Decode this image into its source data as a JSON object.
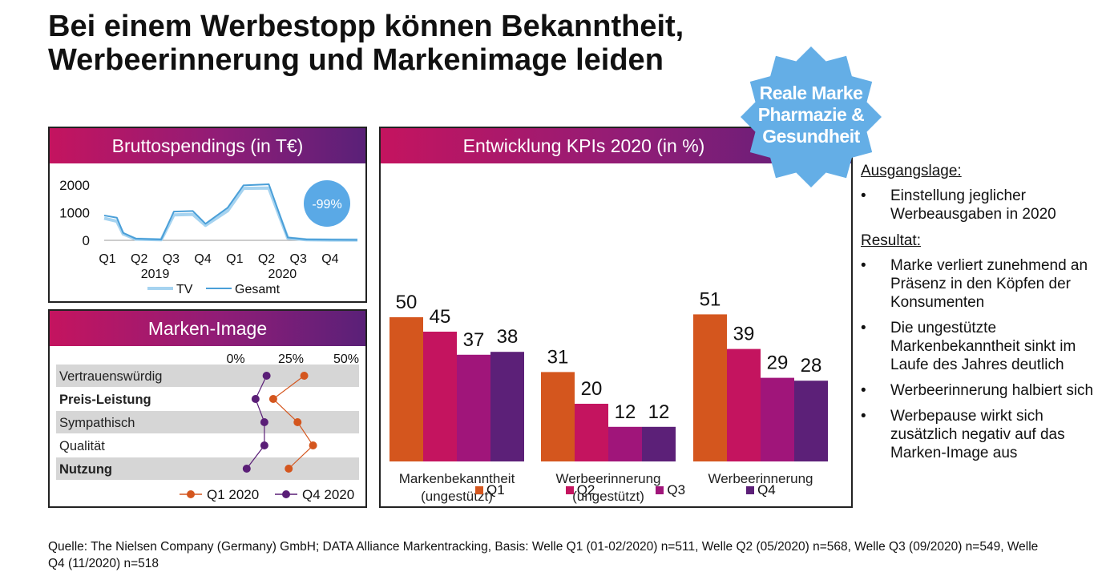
{
  "title": "Bei einem Werbestopp können Bekanntheit, Werbeerinnerung und Markenimage leiden",
  "badge": {
    "lines": [
      "Reale Marke",
      "Pharmazie &",
      "Gesundheit"
    ],
    "color": "#64aee6"
  },
  "colors": {
    "q1": "#d4561e",
    "q2": "#c4145f",
    "q3": "#a0157a",
    "q4": "#5c2078",
    "tv": "#a6d3f0",
    "gesamt": "#4a9fd8",
    "bubble": "#5aa9e6",
    "dot_q1": "#d4561e",
    "dot_q4": "#5a1e77"
  },
  "panels": {
    "spend": {
      "title": "Bruttospendings (in T€)"
    },
    "image": {
      "title": "Marken-Image"
    },
    "kpi": {
      "title": "Entwicklung KPIs 2020 (in %)"
    }
  },
  "sidebar": {
    "ausgangslage_heading": "Ausgangslage:",
    "ausgangslage_items": [
      "Einstellung jeglicher Werbeausgaben in 2020"
    ],
    "resultat_heading": "Resultat:",
    "resultat_items": [
      "Marke verliert zunehmend an Präsenz in den Köpfen der Konsumenten",
      "Die ungestützte Markenbekanntheit sinkt im Laufe des Jahres deutlich",
      "Werbeerinnerung halbiert sich",
      "Werbepause wirkt sich zusätzlich negativ auf das Marken-Image aus"
    ]
  },
  "source": "Quelle: The Nielsen Company (Germany) GmbH; DATA Alliance Markentracking, Basis: Welle Q1 (01-02/2020) n=511, Welle Q2 (05/2020) n=568, Welle Q3 (09/2020) n=549, Welle Q4 (11/2020) n=518",
  "chart_data": [
    {
      "id": "spend",
      "type": "line",
      "title": "Bruttospendings (in T€)",
      "ylim": [
        0,
        2000
      ],
      "y_ticks": [
        "0",
        "1000",
        "2000"
      ],
      "quarter_labels": [
        "Q1",
        "Q2",
        "Q3",
        "Q4",
        "Q1",
        "Q2",
        "Q3",
        "Q4"
      ],
      "year_labels": [
        "2019",
        "2020"
      ],
      "annotation": "-99%",
      "legend": [
        "TV",
        "Gesamt"
      ],
      "x": [
        1,
        1.4,
        1.6,
        2,
        2.5,
        2.8,
        3.2,
        3.8,
        4.2,
        4.9,
        5.4,
        6.2,
        6.8,
        7.4,
        8.2,
        9
      ],
      "series": [
        {
          "name": "TV",
          "values": [
            800,
            690,
            230,
            40,
            30,
            20,
            920,
            940,
            540,
            1070,
            1880,
            1890,
            80,
            20,
            10,
            10
          ]
        },
        {
          "name": "Gesamt",
          "values": [
            900,
            820,
            270,
            60,
            40,
            30,
            1040,
            1060,
            600,
            1180,
            1990,
            2030,
            100,
            30,
            20,
            15
          ]
        }
      ]
    },
    {
      "id": "image",
      "type": "line",
      "title": "Marken-Image",
      "x_ticks": [
        "0%",
        "25%",
        "50%"
      ],
      "xlim": [
        0,
        50
      ],
      "categories": [
        "Vertrauenswürdig",
        "Preis-Leistung",
        "Sympathisch",
        "Qualität",
        "Nutzung"
      ],
      "bold": [
        false,
        true,
        false,
        false,
        true
      ],
      "series": [
        {
          "name": "Q1 2020",
          "values": [
            31,
            17,
            28,
            35,
            24
          ]
        },
        {
          "name": "Q4 2020",
          "values": [
            14,
            9,
            13,
            13,
            5
          ]
        }
      ]
    },
    {
      "id": "kpi",
      "type": "bar",
      "title": "Entwicklung KPIs 2020 (in %)",
      "categories": [
        "Markenbekanntheit (ungestützt)",
        "Werbeerinnerung (ungestützt)",
        "Werbeerinnerung"
      ],
      "ylim": [
        0,
        60
      ],
      "series": [
        {
          "name": "Q1",
          "values": [
            50,
            31,
            51
          ]
        },
        {
          "name": "Q2",
          "values": [
            45,
            20,
            39
          ]
        },
        {
          "name": "Q3",
          "values": [
            37,
            12,
            29
          ]
        },
        {
          "name": "Q4",
          "values": [
            38,
            12,
            28
          ]
        }
      ]
    }
  ]
}
